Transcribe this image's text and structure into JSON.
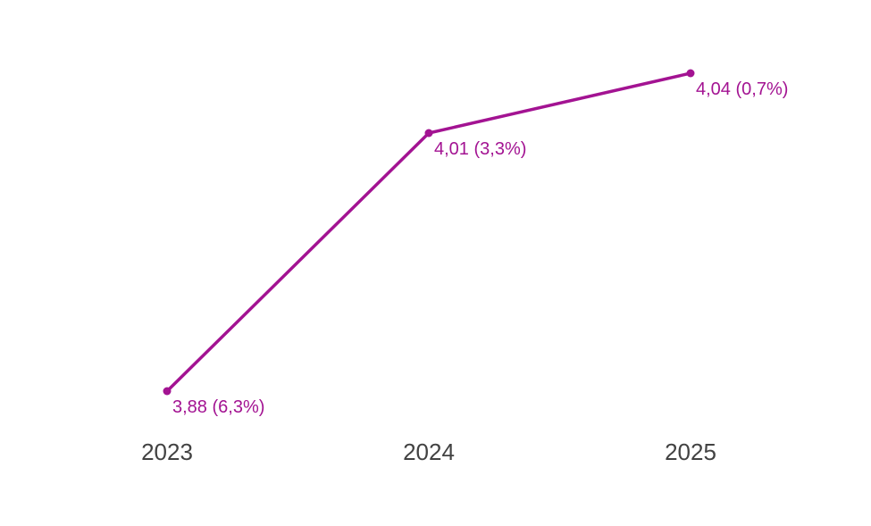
{
  "chart_data": {
    "type": "line",
    "categories": [
      "2023",
      "2024",
      "2025"
    ],
    "series": [
      {
        "name": "value",
        "values": [
          3.88,
          4.01,
          4.04
        ],
        "percent_change": [
          6.3,
          3.3,
          0.7
        ],
        "point_labels": [
          "3,88 (6,3%)",
          "4,01 (3,3%)",
          "4,04 (0,7%)"
        ]
      }
    ],
    "ylim": [
      3.88,
      4.04
    ],
    "grid": false,
    "legend": false,
    "y_axis_visible": false,
    "x_axis_line_visible": false,
    "line_color": "#a31392",
    "point_color": "#a31392",
    "point_label_color": "#a31392",
    "axis_label_color": "#424242",
    "background_color": "#ffffff"
  }
}
